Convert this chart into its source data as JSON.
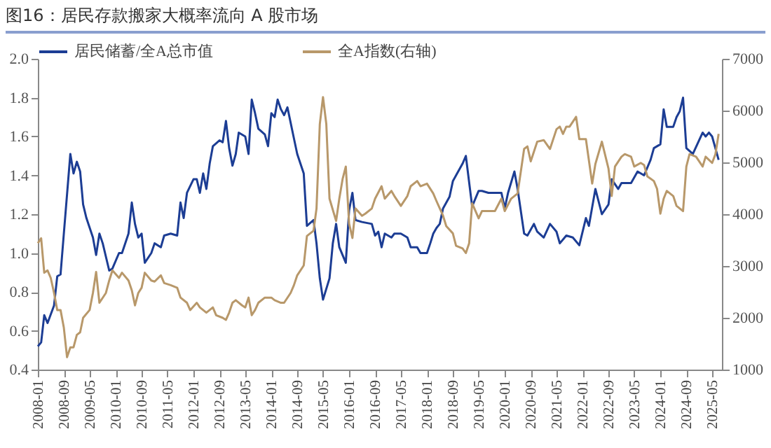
{
  "chart_data": {
    "type": "line",
    "title": "图16：居民存款搬家大概率流向 A 股市场",
    "legend": "top",
    "xlim": [
      "2008-01",
      "2025-08"
    ],
    "xticks": [
      "2008-01",
      "2008-09",
      "2009-05",
      "2010-01",
      "2010-09",
      "2011-05",
      "2012-01",
      "2012-09",
      "2013-05",
      "2014-01",
      "2014-09",
      "2015-05",
      "2016-01",
      "2016-09",
      "2017-05",
      "2018-01",
      "2018-09",
      "2019-05",
      "2020-01",
      "2020-09",
      "2021-05",
      "2022-01",
      "2022-09",
      "2023-05",
      "2024-01",
      "2024-09",
      "2025-05"
    ],
    "ylim": [
      0.4,
      2.0
    ],
    "yticks": [
      0.4,
      0.6,
      0.8,
      {
        "value": 1,
        "label": "1.0"
      },
      1.2,
      1.4,
      1.6,
      1.8,
      {
        "value": 2,
        "label": "2.0"
      }
    ],
    "y2lim": [
      1000,
      7000
    ],
    "y2ticks": [
      1000,
      2000,
      3000,
      4000,
      5000,
      6000,
      7000
    ],
    "series": [
      {
        "name": "居民储蓄/全A总市值",
        "color": "#1c3d94",
        "x": [
          "2008-01",
          "2008-02",
          "2008-03",
          "2008-04",
          "2008-06",
          "2008-07",
          "2008-08",
          "2008-09",
          "2008-11",
          "2008-12",
          "2009-01",
          "2009-02",
          "2009-03",
          "2009-04",
          "2009-06",
          "2009-07",
          "2009-08",
          "2009-09",
          "2009-11",
          "2009-12",
          "2010-02",
          "2010-03",
          "2010-05",
          "2010-06",
          "2010-07",
          "2010-08",
          "2010-09",
          "2010-10",
          "2010-12",
          "2011-01",
          "2011-03",
          "2011-04",
          "2011-06",
          "2011-08",
          "2011-09",
          "2011-10",
          "2011-11",
          "2012-01",
          "2012-02",
          "2012-03",
          "2012-04",
          "2012-05",
          "2012-06",
          "2012-07",
          "2012-09",
          "2012-10",
          "2012-11",
          "2012-12",
          "2013-01",
          "2013-02",
          "2013-03",
          "2013-05",
          "2013-06",
          "2013-07",
          "2013-08",
          "2013-09",
          "2013-11",
          "2013-12",
          "2014-01",
          "2014-02",
          "2014-03",
          "2014-04",
          "2014-05",
          "2014-06",
          "2014-08",
          "2014-09",
          "2014-11",
          "2014-12",
          "2015-02",
          "2015-03",
          "2015-04",
          "2015-05",
          "2015-07",
          "2015-08",
          "2015-09",
          "2015-10",
          "2015-12",
          "2016-01",
          "2016-02",
          "2016-03",
          "2016-05",
          "2016-08",
          "2016-09",
          "2016-10",
          "2016-11",
          "2016-12",
          "2017-02",
          "2017-03",
          "2017-05",
          "2017-07",
          "2017-08",
          "2017-10",
          "2017-11",
          "2018-01",
          "2018-02",
          "2018-03",
          "2018-04",
          "2018-05",
          "2018-06",
          "2018-08",
          "2018-09",
          "2018-10",
          "2018-12",
          "2019-01",
          "2019-03",
          "2019-05",
          "2019-06",
          "2019-08",
          "2019-10",
          "2019-12",
          "2020-01",
          "2020-02",
          "2020-04",
          "2020-05",
          "2020-07",
          "2020-08",
          "2020-10",
          "2020-11",
          "2021-01",
          "2021-03",
          "2021-05",
          "2021-06",
          "2021-08",
          "2021-10",
          "2021-12",
          "2022-02",
          "2022-03",
          "2022-05",
          "2022-07",
          "2022-09",
          "2022-10",
          "2022-12",
          "2023-01",
          "2023-04",
          "2023-06",
          "2023-08",
          "2023-10",
          "2023-11",
          "2024-01",
          "2024-02",
          "2024-03",
          "2024-05",
          "2024-06",
          "2024-07",
          "2024-08",
          "2024-09",
          "2024-11",
          "2025-02",
          "2025-03",
          "2025-04",
          "2025-05",
          "2025-07"
        ],
        "values": [
          0.52,
          0.54,
          0.68,
          0.64,
          0.73,
          0.88,
          0.89,
          1.1,
          1.51,
          1.41,
          1.47,
          1.42,
          1.25,
          1.18,
          1.08,
          0.99,
          1.1,
          1.05,
          0.91,
          0.92,
          1.0,
          1.0,
          1.1,
          1.26,
          1.15,
          1.08,
          1.1,
          0.95,
          1.0,
          1.05,
          1.03,
          1.09,
          1.1,
          1.09,
          1.26,
          1.18,
          1.31,
          1.38,
          1.38,
          1.31,
          1.41,
          1.33,
          1.46,
          1.55,
          1.58,
          1.57,
          1.68,
          1.54,
          1.45,
          1.51,
          1.62,
          1.6,
          1.51,
          1.79,
          1.72,
          1.64,
          1.61,
          1.55,
          1.72,
          1.7,
          1.79,
          1.74,
          1.71,
          1.75,
          1.59,
          1.51,
          1.41,
          1.14,
          1.17,
          1.05,
          0.87,
          0.76,
          0.87,
          1.05,
          1.15,
          1.03,
          0.95,
          1.22,
          1.31,
          1.17,
          1.16,
          1.15,
          1.09,
          1.11,
          1.03,
          1.1,
          1.08,
          1.1,
          1.1,
          1.08,
          1.03,
          1.03,
          1.0,
          1.0,
          1.05,
          1.1,
          1.13,
          1.15,
          1.23,
          1.29,
          1.37,
          1.4,
          1.46,
          1.5,
          1.24,
          1.32,
          1.32,
          1.31,
          1.31,
          1.31,
          1.23,
          1.31,
          1.42,
          1.33,
          1.1,
          1.09,
          1.15,
          1.11,
          1.08,
          1.15,
          1.11,
          1.05,
          1.09,
          1.08,
          1.04,
          1.18,
          1.14,
          1.33,
          1.2,
          1.25,
          1.38,
          1.33,
          1.36,
          1.36,
          1.42,
          1.4,
          1.48,
          1.54,
          1.56,
          1.74,
          1.65,
          1.65,
          1.7,
          1.73,
          1.8,
          1.54,
          1.51,
          1.62,
          1.6,
          1.62,
          1.6,
          1.48
        ]
      },
      {
        "name": "全A指数(右轴)",
        "color": "#b8986a",
        "axis": "y2",
        "x": [
          "2008-01",
          "2008-02",
          "2008-03",
          "2008-04",
          "2008-05",
          "2008-06",
          "2008-07",
          "2008-08",
          "2008-09",
          "2008-10",
          "2008-11",
          "2008-12",
          "2009-01",
          "2009-02",
          "2009-03",
          "2009-05",
          "2009-06",
          "2009-07",
          "2009-08",
          "2009-10",
          "2009-11",
          "2009-12",
          "2010-02",
          "2010-03",
          "2010-05",
          "2010-06",
          "2010-07",
          "2010-08",
          "2010-09",
          "2010-10",
          "2010-12",
          "2011-01",
          "2011-03",
          "2011-04",
          "2011-06",
          "2011-08",
          "2011-09",
          "2011-11",
          "2011-12",
          "2012-02",
          "2012-03",
          "2012-05",
          "2012-07",
          "2012-08",
          "2012-10",
          "2012-11",
          "2012-12",
          "2013-01",
          "2013-02",
          "2013-04",
          "2013-05",
          "2013-06",
          "2013-07",
          "2013-08",
          "2013-09",
          "2013-11",
          "2014-01",
          "2014-02",
          "2014-04",
          "2014-05",
          "2014-07",
          "2014-08",
          "2014-09",
          "2014-11",
          "2014-12",
          "2015-02",
          "2015-03",
          "2015-04",
          "2015-05",
          "2015-06",
          "2015-07",
          "2015-09",
          "2015-10",
          "2015-11",
          "2015-12",
          "2016-01",
          "2016-02",
          "2016-03",
          "2016-05",
          "2016-06",
          "2016-08",
          "2016-09",
          "2016-11",
          "2016-12",
          "2017-02",
          "2017-03",
          "2017-05",
          "2017-07",
          "2017-08",
          "2017-10",
          "2017-11",
          "2018-01",
          "2018-03",
          "2018-04",
          "2018-06",
          "2018-07",
          "2018-09",
          "2018-10",
          "2018-12",
          "2019-01",
          "2019-02",
          "2019-03",
          "2019-05",
          "2019-06",
          "2019-08",
          "2019-10",
          "2019-12",
          "2020-01",
          "2020-03",
          "2020-05",
          "2020-07",
          "2020-08",
          "2020-09",
          "2020-11",
          "2021-01",
          "2021-03",
          "2021-05",
          "2021-06",
          "2021-07",
          "2021-08",
          "2021-09",
          "2021-11",
          "2021-12",
          "2022-02",
          "2022-04",
          "2022-05",
          "2022-07",
          "2022-09",
          "2022-10",
          "2022-11",
          "2023-01",
          "2023-02",
          "2023-04",
          "2023-05",
          "2023-07",
          "2023-08",
          "2023-09",
          "2023-11",
          "2023-12",
          "2024-01",
          "2024-02",
          "2024-03",
          "2024-05",
          "2024-06",
          "2024-08",
          "2024-09",
          "2024-10",
          "2024-12",
          "2025-02",
          "2025-03",
          "2025-05",
          "2025-06",
          "2025-07"
        ],
        "values": [
          3440,
          3535,
          2870,
          2915,
          2770,
          2480,
          2150,
          2150,
          1810,
          1240,
          1430,
          1430,
          1670,
          1720,
          2000,
          2150,
          2480,
          2885,
          2290,
          2480,
          2720,
          2915,
          2770,
          2870,
          2720,
          2530,
          2240,
          2480,
          2580,
          2870,
          2720,
          2700,
          2820,
          2670,
          2630,
          2580,
          2390,
          2290,
          2150,
          2290,
          2200,
          2100,
          2200,
          2050,
          2000,
          1960,
          2100,
          2290,
          2340,
          2240,
          2200,
          2390,
          2050,
          2150,
          2290,
          2390,
          2390,
          2340,
          2290,
          2290,
          2480,
          2630,
          2820,
          3010,
          3580,
          3680,
          4110,
          5740,
          6260,
          5740,
          4300,
          3870,
          4300,
          4680,
          4920,
          3820,
          3540,
          4110,
          3970,
          4010,
          4110,
          4300,
          4540,
          4300,
          4450,
          4350,
          4160,
          4350,
          4540,
          4640,
          4540,
          4590,
          4400,
          4250,
          3970,
          3770,
          3630,
          3390,
          3340,
          3250,
          3440,
          4210,
          3920,
          4060,
          4060,
          4060,
          4300,
          4060,
          4300,
          4400,
          5260,
          5310,
          5020,
          5400,
          5430,
          5260,
          5640,
          5690,
          5550,
          5690,
          5690,
          5880,
          5450,
          5450,
          4590,
          4970,
          5400,
          4880,
          4350,
          4920,
          5110,
          5160,
          5110,
          4920,
          4990,
          4950,
          4730,
          4640,
          4490,
          4010,
          4300,
          4450,
          4350,
          4160,
          4060,
          4920,
          5160,
          5110,
          4920,
          5110,
          4990,
          5160,
          5550
        ]
      }
    ]
  }
}
